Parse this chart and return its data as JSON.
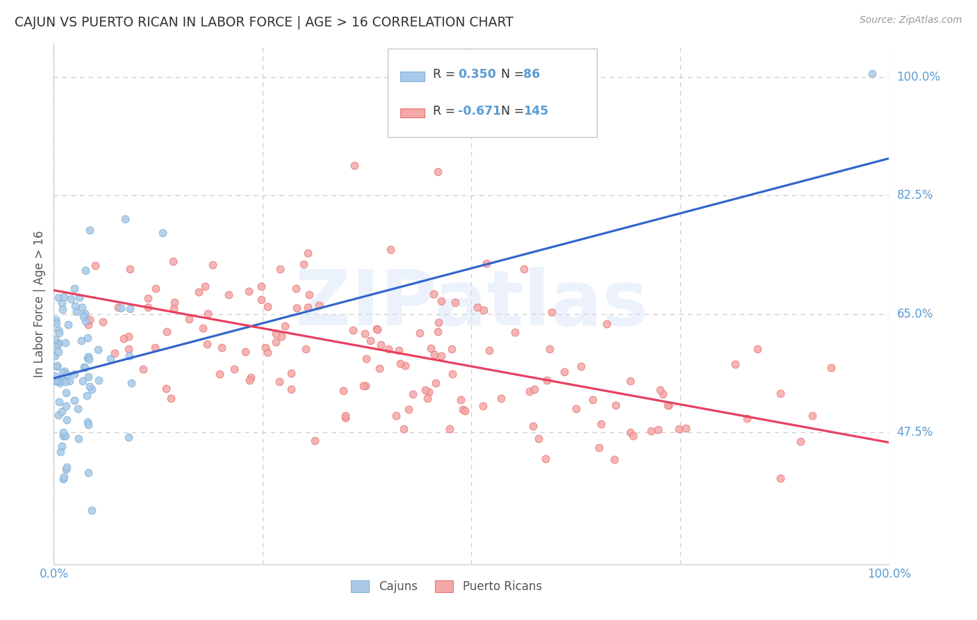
{
  "title": "CAJUN VS PUERTO RICAN IN LABOR FORCE | AGE > 16 CORRELATION CHART",
  "source": "Source: ZipAtlas.com",
  "ylabel": "In Labor Force | Age > 16",
  "xlim": [
    0.0,
    1.0
  ],
  "ylim": [
    0.28,
    1.05
  ],
  "ytick_positions": [
    0.475,
    0.65,
    0.825,
    1.0
  ],
  "ytick_labels": [
    "47.5%",
    "65.0%",
    "82.5%",
    "100.0%"
  ],
  "cajun_face": "#aac9e8",
  "cajun_edge": "#7bafd4",
  "pr_face": "#f4a8a8",
  "pr_edge": "#e87070",
  "trend_cajun_color": "#3366cc",
  "trend_pr_color": "#e84060",
  "R_cajun": 0.35,
  "N_cajun": 86,
  "R_pr": -0.671,
  "N_pr": 145,
  "watermark": "ZIPatlas",
  "legend_label_cajun": "Cajuns",
  "legend_label_pr": "Puerto Ricans",
  "background_color": "#ffffff",
  "grid_color": "#cccccc",
  "title_color": "#333333",
  "tick_label_color": "#5b9bd5",
  "legend_R_color": "#333333",
  "legend_N_color": "#5b9bd5",
  "trend_cajun_intercept": 0.555,
  "trend_cajun_slope": 0.325,
  "trend_pr_intercept": 0.685,
  "trend_pr_slope": -0.225
}
